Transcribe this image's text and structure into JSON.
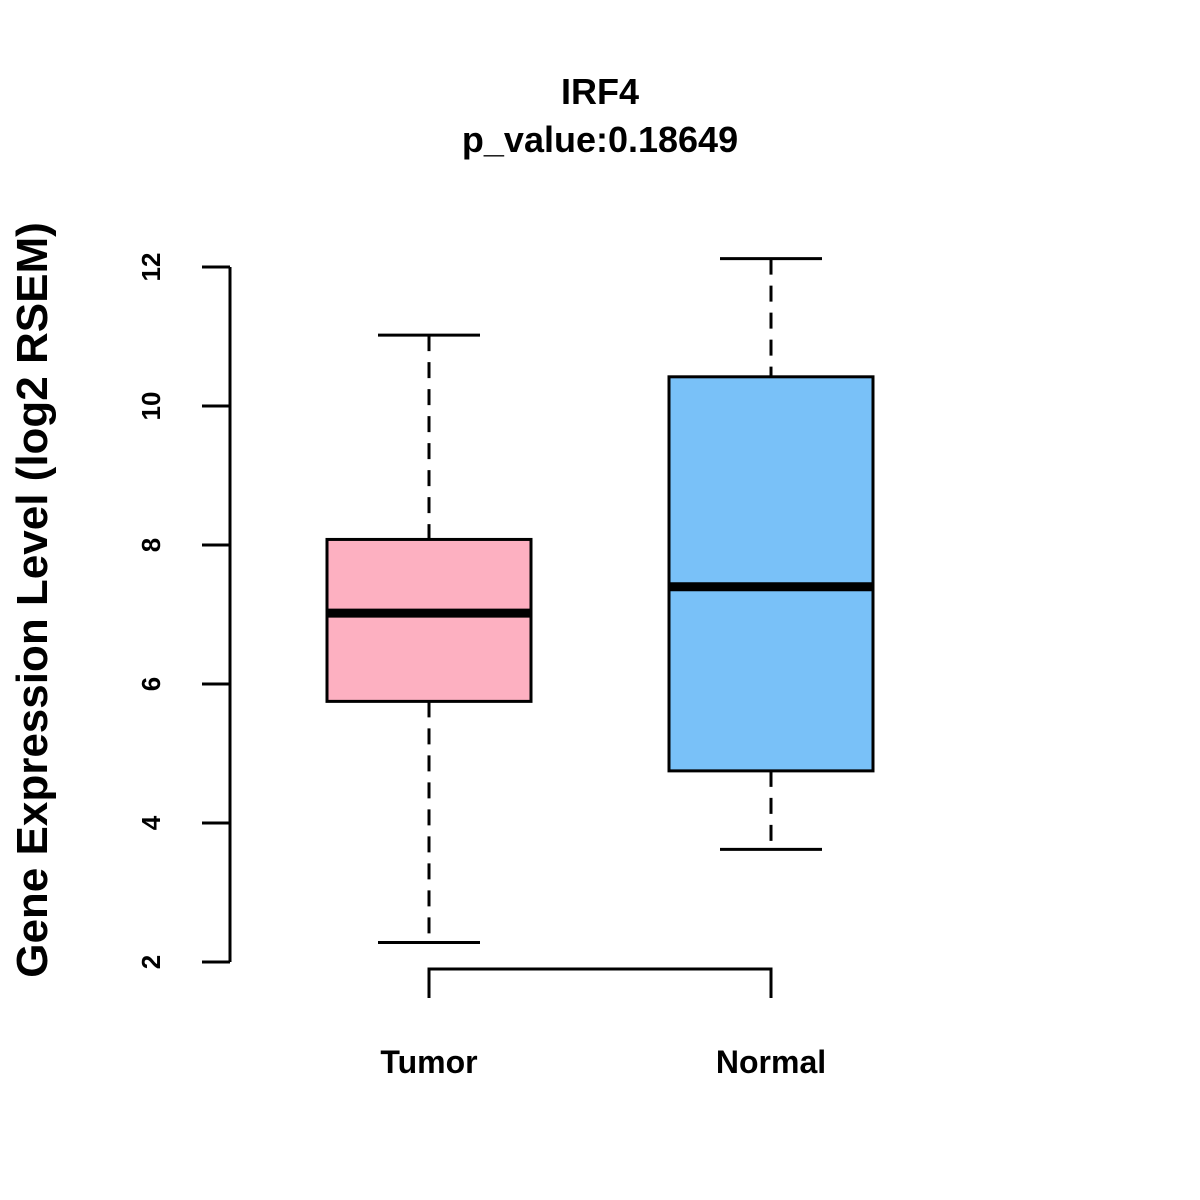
{
  "chart_data": {
    "type": "boxplot",
    "title": "IRF4",
    "subtitle": "p_value:0.18649",
    "xlabel": "",
    "ylabel": "Gene Expression Level (log2 RSEM)",
    "ylim": [
      2,
      12
    ],
    "yticks": [
      2,
      4,
      6,
      8,
      10,
      12
    ],
    "ytick_labels": [
      "2",
      "4",
      "6",
      "8",
      "10",
      "12"
    ],
    "grid": false,
    "categories": [
      "Tumor",
      "Normal"
    ],
    "boxes": [
      {
        "name": "Tumor",
        "whisker_low": 2.28,
        "q1": 5.75,
        "median": 7.02,
        "q3": 8.08,
        "whisker_high": 11.02,
        "color": "#FDB0C1"
      },
      {
        "name": "Normal",
        "whisker_low": 3.62,
        "q1": 4.75,
        "median": 7.4,
        "q3": 10.42,
        "whisker_high": 12.12,
        "color": "#79C1F8"
      }
    ],
    "comparison_bracket": {
      "from": "Tumor",
      "to": "Normal",
      "label": ""
    }
  }
}
